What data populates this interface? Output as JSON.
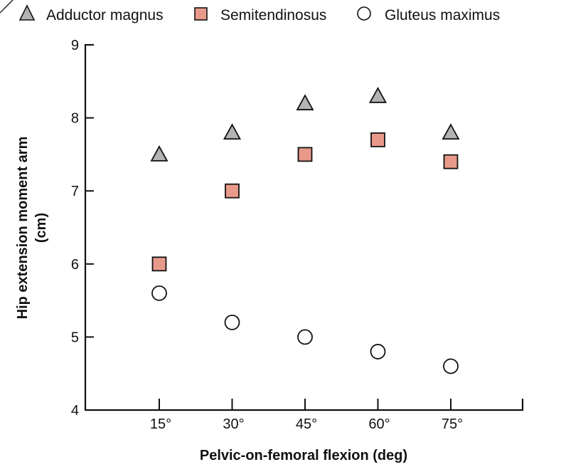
{
  "chart_data": {
    "type": "scatter",
    "x": [
      "15°",
      "30°",
      "45°",
      "60°",
      "75°"
    ],
    "xlabel": "Pelvic-on-femoral flexion (deg)",
    "ylabel": "Hip extension moment arm",
    "ylabel_unit": "(cm)",
    "ylim": [
      4,
      9
    ],
    "yticks": [
      "4",
      "5",
      "6",
      "7",
      "8",
      "9"
    ],
    "legend_position": "top",
    "grid": false,
    "series": [
      {
        "name": "Adductor magnus",
        "marker": "triangle",
        "fill": "#b3b3b3",
        "values": [
          7.5,
          7.8,
          8.2,
          8.3,
          7.8
        ]
      },
      {
        "name": "Semitendinosus",
        "marker": "square",
        "fill": "#e9998a",
        "values": [
          6.0,
          7.0,
          7.5,
          7.7,
          7.4
        ]
      },
      {
        "name": "Gluteus maximus",
        "marker": "circle",
        "fill": "#ffffff",
        "values": [
          5.6,
          5.2,
          5.0,
          4.8,
          4.6
        ]
      }
    ]
  }
}
